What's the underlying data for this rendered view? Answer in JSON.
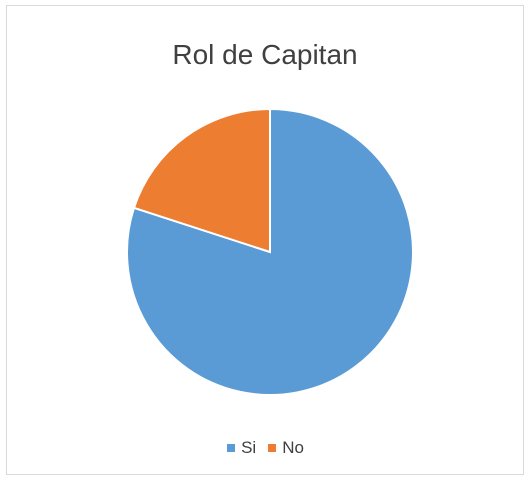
{
  "chart_data": {
    "type": "pie",
    "title": "Rol de Capitan",
    "categories": [
      "Si",
      "No"
    ],
    "values": [
      80,
      20
    ],
    "colors": [
      "#5b9bd5",
      "#ed7d31"
    ],
    "legend_position": "bottom"
  }
}
